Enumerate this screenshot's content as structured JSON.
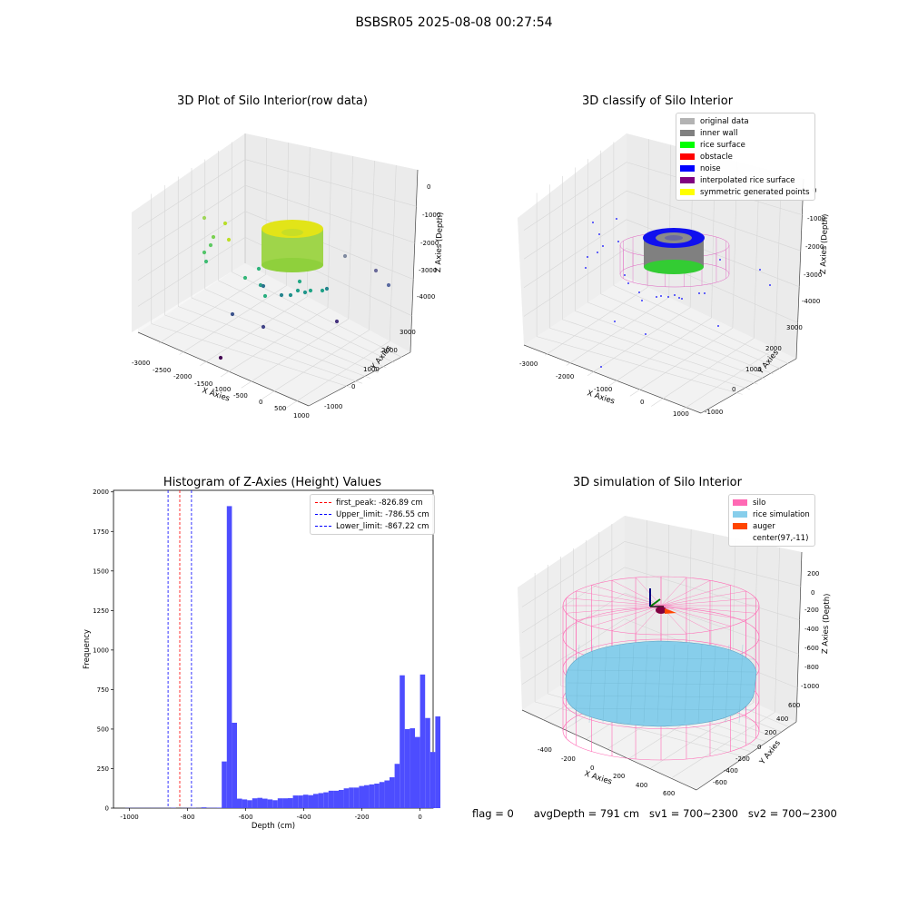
{
  "figure": {
    "title": "BSBSR05 2025-08-08 00:27:54"
  },
  "status_line": {
    "flag": "flag = 0",
    "avg_depth": "avgDepth = 791 cm",
    "sv1": "sv1 = 700~2300",
    "sv2": "sv2 = 700~2300"
  },
  "colors": {
    "original_data": "#b3b3b3",
    "inner_wall": "#808080",
    "rice_surface": "#00ff00",
    "obstacle": "#ff0000",
    "noise": "#0000ff",
    "interpolated_rice_surface": "#800080",
    "symmetric_generated_points": "#ffff00",
    "silo": "#ff69b4",
    "rice_simulation": "#87ceeb",
    "auger": "#ff4500",
    "histogram_bar": "#4d4dff"
  },
  "chart_data": [
    {
      "type": "scatter",
      "projection": "3d",
      "title": "3D Plot of Silo Interior(row data)",
      "xlabel": "X Axies",
      "ylabel": "Y Axies",
      "zlabel": "Z Axies (Depth)",
      "xticks": [
        "-3000",
        "-2500",
        "-2000",
        "-1500",
        "-1000",
        "-500",
        "0",
        "500",
        "1000"
      ],
      "yticks": [
        "-1000",
        "0",
        "1000",
        "2000",
        "3000"
      ],
      "zticks": [
        "0",
        "-1000",
        "-2000",
        "-3000",
        "-4000"
      ],
      "grid": true
    },
    {
      "type": "scatter",
      "projection": "3d",
      "title": "3D classify of Silo Interior",
      "xlabel": "X Axies",
      "ylabel": "Y Axies",
      "zlabel": "Z Axies (Depth)",
      "xticks": [
        "-3000",
        "-2000",
        "-1000",
        "0",
        "1000"
      ],
      "yticks": [
        "-1000",
        "0",
        "1000",
        "2000",
        "3000"
      ],
      "zticks": [
        "0",
        "-1000",
        "-2000",
        "-3000",
        "-4000"
      ],
      "legend": [
        "original data",
        "inner wall",
        "rice surface",
        "obstacle",
        "noise",
        "interpolated rice surface",
        "symmetric generated points"
      ],
      "legend_position": "top-right",
      "grid": true
    },
    {
      "type": "bar",
      "title": "Histogram of Z-Axies (Height) Values",
      "xlabel": "Depth (cm)",
      "ylabel": "Frequency",
      "xlim": [
        -1055,
        45
      ],
      "ylim": [
        0,
        2010
      ],
      "xticks": [
        -1000,
        -800,
        -600,
        -400,
        -200,
        0
      ],
      "yticks": [
        0,
        250,
        500,
        750,
        1000,
        1250,
        1500,
        1750,
        2000
      ],
      "bin_width": 17.5,
      "bin_start": -1015,
      "values": [
        1,
        1,
        1,
        1,
        1,
        1,
        1,
        1,
        1,
        2,
        0,
        1,
        1,
        2,
        1,
        5,
        2,
        2,
        3,
        295,
        1910,
        540,
        60,
        55,
        50,
        62,
        65,
        60,
        55,
        50,
        62,
        62,
        63,
        80,
        80,
        85,
        82,
        90,
        95,
        100,
        110,
        110,
        115,
        125,
        130,
        130,
        140,
        145,
        150,
        155,
        165,
        175,
        195,
        280,
        840,
        500,
        505,
        450,
        845,
        570,
        355,
        580
      ],
      "lines": [
        {
          "label": "first_peak: -826.89 cm",
          "x": -826.89,
          "color": "#ff0000"
        },
        {
          "label": "Upper_limit: -786.55 cm",
          "x": -786.55,
          "color": "#0000ff"
        },
        {
          "label": "Lower_limit: -867.22 cm",
          "x": -867.22,
          "color": "#0000ff"
        }
      ],
      "legend_position": "top-right"
    },
    {
      "type": "surface",
      "projection": "3d",
      "title": "3D simulation of Silo Interior",
      "xlabel": "X Axies",
      "ylabel": "Y Axies",
      "zlabel": "Z Axies (Depth)",
      "xticks": [
        "-400",
        "-200",
        "0",
        "200",
        "400",
        "600"
      ],
      "yticks": [
        "-600",
        "-400",
        "-200",
        "0",
        "200",
        "400",
        "600"
      ],
      "zticks": [
        "200",
        "0",
        "-200",
        "-400",
        "-600",
        "-800",
        "-1000"
      ],
      "legend": [
        "silo",
        "rice simulation",
        "auger",
        "center(97,-11)"
      ],
      "legend_position": "top-right",
      "grid": true
    }
  ]
}
